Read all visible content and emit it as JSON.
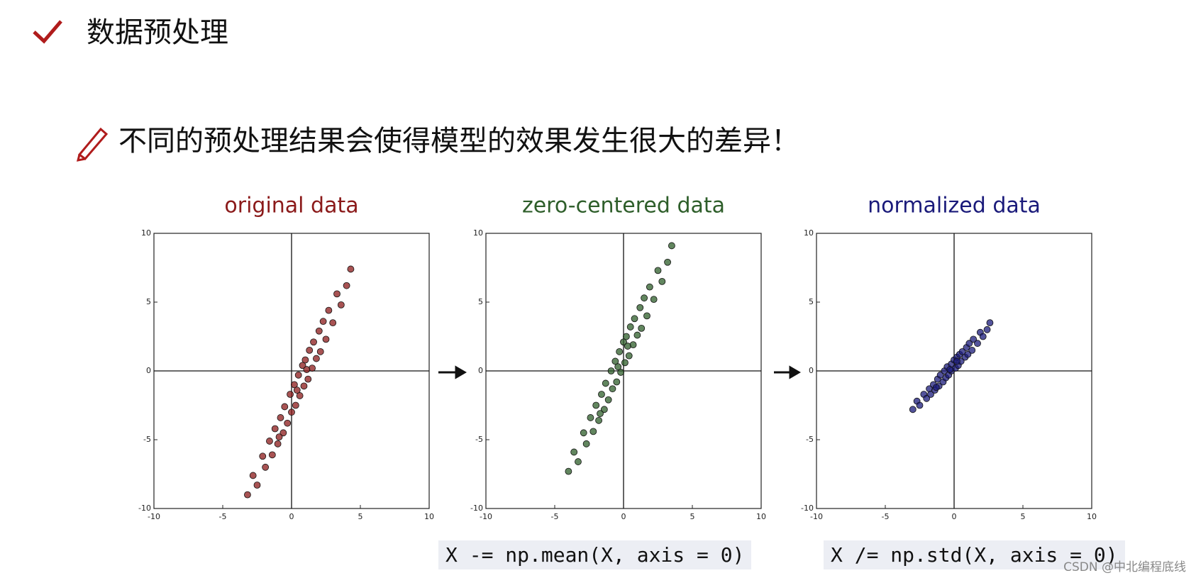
{
  "header": {
    "title": "数据预处理",
    "subtitle": "不同的预处理结果会使得模型的效果发生很大的差异！"
  },
  "chart_data": [
    {
      "type": "scatter",
      "title": "original data",
      "color": "#8b1a1a",
      "xlim": [
        -10,
        10
      ],
      "ylim": [
        -10,
        10
      ],
      "xticks": [
        -10,
        -5,
        0,
        5,
        10
      ],
      "yticks": [
        -10,
        -5,
        0,
        5,
        10
      ],
      "x": [
        -3.2,
        -2.8,
        -2.5,
        -2.1,
        -1.9,
        -1.6,
        -1.4,
        -1.2,
        -1.0,
        -0.8,
        -0.6,
        -0.5,
        -0.3,
        -0.1,
        0,
        0.2,
        0.3,
        0.5,
        0.6,
        0.8,
        0.9,
        1.0,
        1.2,
        1.3,
        1.5,
        1.6,
        1.8,
        2.0,
        2.1,
        2.3,
        2.5,
        2.7,
        3.0,
        3.3,
        3.6,
        4.0,
        4.3,
        0.4,
        1.1,
        -0.9
      ],
      "values": [
        -9.0,
        -7.6,
        -8.3,
        -6.2,
        -7.0,
        -5.1,
        -6.1,
        -4.2,
        -5.3,
        -3.4,
        -4.5,
        -2.6,
        -3.8,
        -1.7,
        -3.0,
        -1.0,
        -2.5,
        -0.3,
        -1.8,
        0.4,
        -1.1,
        0.8,
        -0.6,
        1.5,
        0.2,
        2.1,
        0.9,
        2.9,
        1.4,
        3.6,
        2.3,
        4.4,
        3.5,
        5.6,
        4.8,
        6.2,
        7.4,
        -1.4,
        0.1,
        -4.8
      ]
    },
    {
      "type": "scatter",
      "title": "zero-centered data",
      "color": "#2e5e2a",
      "xlim": [
        -10,
        10
      ],
      "ylim": [
        -10,
        10
      ],
      "xticks": [
        -10,
        -5,
        0,
        5,
        10
      ],
      "yticks": [
        -10,
        -5,
        0,
        5,
        10
      ],
      "x": [
        -4.0,
        -3.6,
        -3.3,
        -2.9,
        -2.7,
        -2.4,
        -2.2,
        -2.0,
        -1.8,
        -1.6,
        -1.4,
        -1.3,
        -1.1,
        -0.9,
        -0.8,
        -0.6,
        -0.5,
        -0.3,
        -0.2,
        0,
        0.1,
        0.2,
        0.4,
        0.5,
        0.7,
        0.8,
        1.0,
        1.2,
        1.3,
        1.5,
        1.7,
        1.9,
        2.2,
        2.5,
        2.8,
        3.2,
        3.5,
        -0.4,
        0.3,
        -1.7
      ],
      "values": [
        -7.3,
        -5.9,
        -6.6,
        -4.5,
        -5.3,
        -3.4,
        -4.4,
        -2.5,
        -3.6,
        -1.7,
        -2.8,
        -0.9,
        -2.1,
        0,
        -1.3,
        0.7,
        -0.8,
        1.4,
        -0.1,
        2.1,
        0.6,
        2.5,
        1.1,
        3.2,
        1.9,
        3.8,
        2.6,
        4.6,
        3.1,
        5.3,
        4.0,
        6.1,
        5.2,
        7.3,
        6.5,
        7.9,
        9.1,
        0.3,
        1.8,
        -3.1
      ]
    },
    {
      "type": "scatter",
      "title": "normalized data",
      "color": "#1a1a7a",
      "xlim": [
        -10,
        10
      ],
      "ylim": [
        -10,
        10
      ],
      "xticks": [
        -10,
        -5,
        0,
        5,
        10
      ],
      "yticks": [
        -10,
        -5,
        0,
        5,
        10
      ],
      "x": [
        -3.0,
        -2.7,
        -2.5,
        -2.2,
        -2.0,
        -1.8,
        -1.7,
        -1.5,
        -1.4,
        -1.2,
        -1.1,
        -1.0,
        -0.8,
        -0.7,
        -0.6,
        -0.5,
        -0.4,
        -0.2,
        -0.2,
        0,
        0.1,
        0.2,
        0.3,
        0.4,
        0.5,
        0.6,
        0.8,
        0.9,
        1.0,
        1.1,
        1.3,
        1.4,
        1.7,
        1.9,
        2.1,
        2.4,
        2.6,
        -0.3,
        0.2,
        -1.3
      ],
      "values": [
        -2.8,
        -2.2,
        -2.5,
        -1.7,
        -2.0,
        -1.3,
        -1.7,
        -1.0,
        -1.4,
        -0.6,
        -1.1,
        -0.3,
        -0.8,
        0,
        -0.5,
        0.3,
        -0.3,
        0.5,
        0,
        0.8,
        0.2,
        1.0,
        0.4,
        1.2,
        0.7,
        1.4,
        1.0,
        1.7,
        1.2,
        2.0,
        1.5,
        2.3,
        2.0,
        2.8,
        2.5,
        3.0,
        3.5,
        0.1,
        0.7,
        -1.2
      ]
    }
  ],
  "code": [
    "X -= np.mean(X, axis = 0)",
    "X /= np.std(X, axis = 0)"
  ],
  "watermark": "CSDN @中北编程底线"
}
